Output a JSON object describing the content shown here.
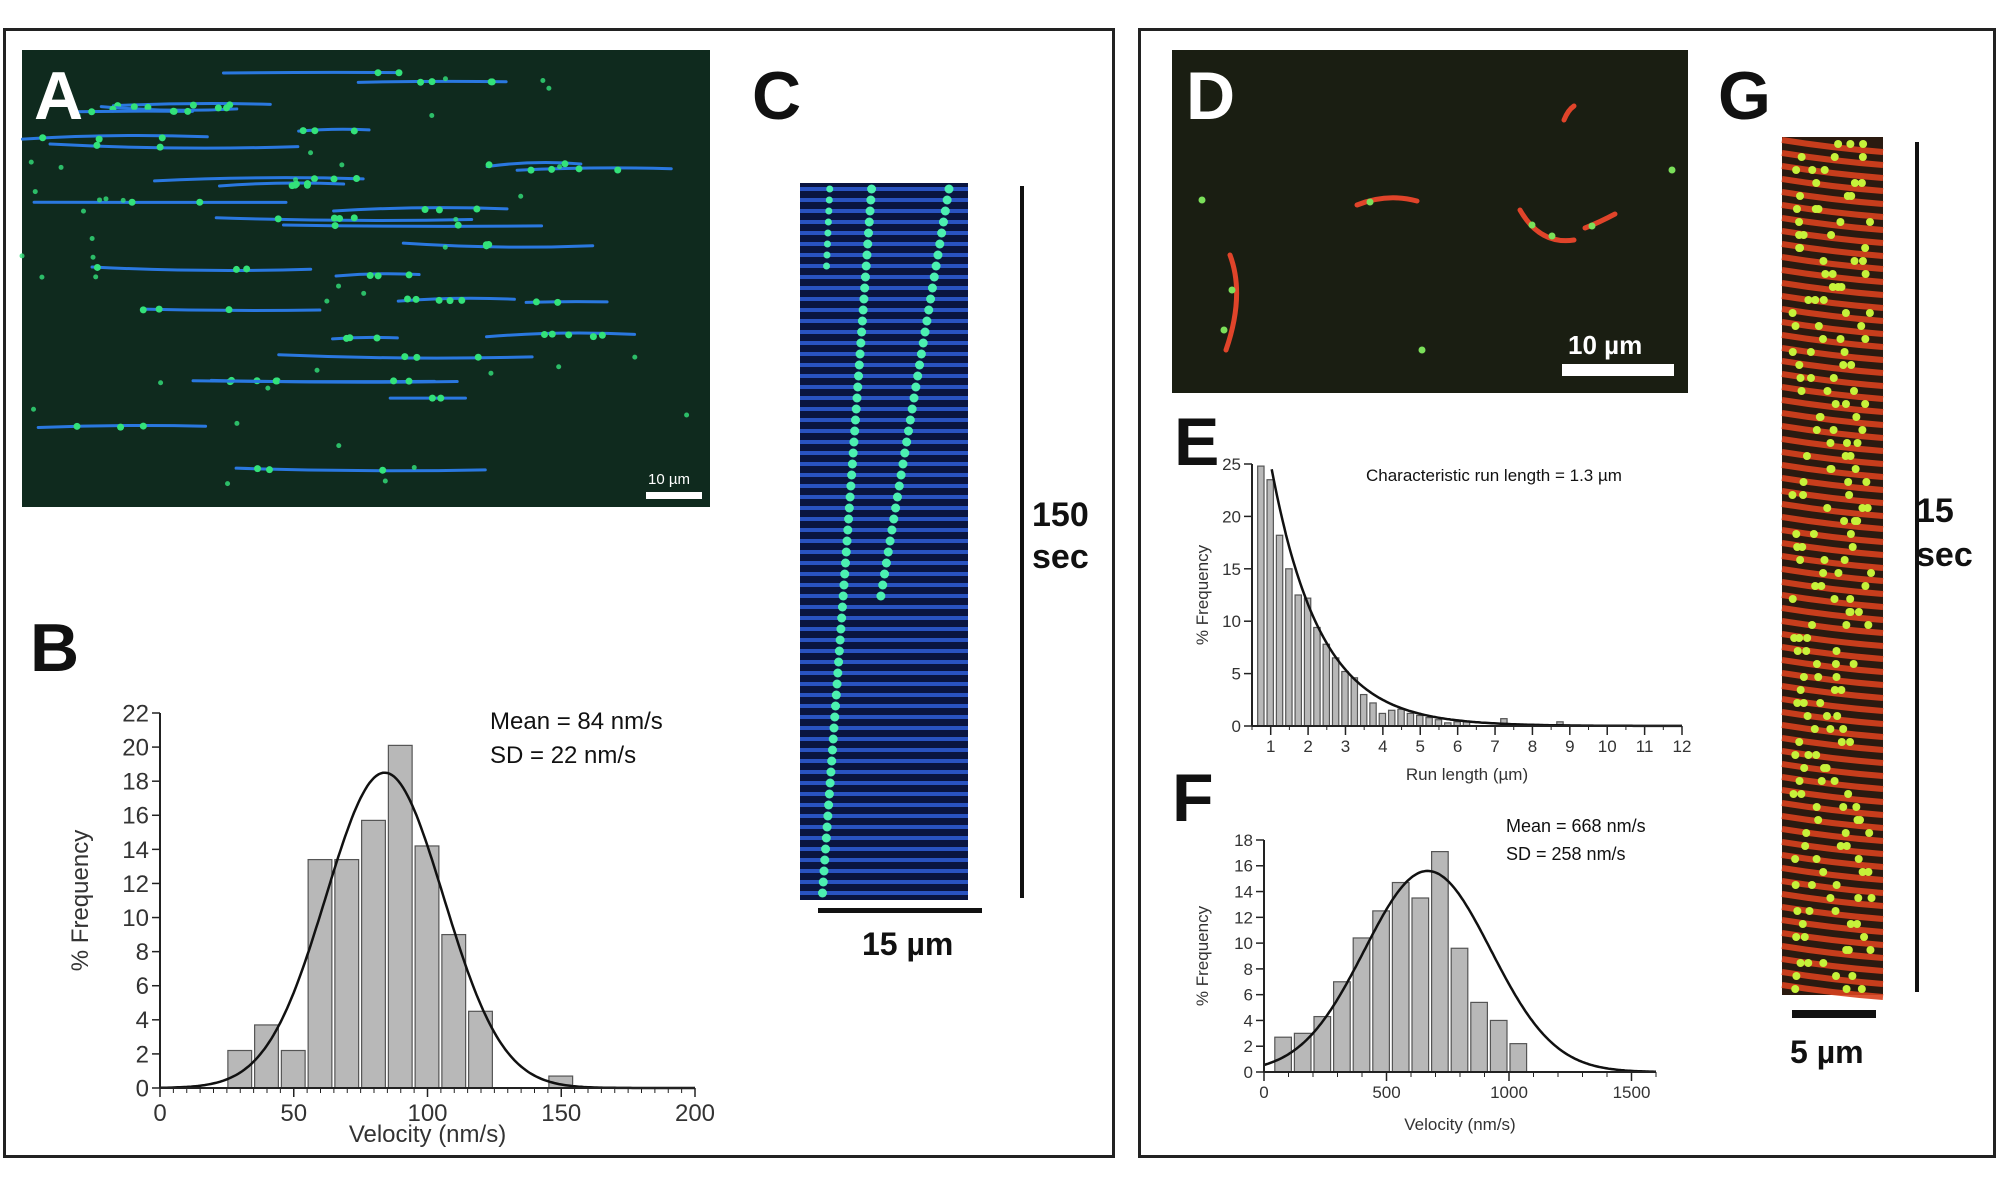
{
  "panels": {
    "A": {
      "label": "A",
      "scale": "10 µm"
    },
    "B": {
      "label": "B",
      "stat1": "Mean = 84 nm/s",
      "stat2": "SD = 22 nm/s"
    },
    "C": {
      "label": "C",
      "time": "150",
      "time_unit": "sec",
      "scale": "15 µm"
    },
    "D": {
      "label": "D",
      "scale": "10 µm"
    },
    "E": {
      "label": "E",
      "annotation": "Characteristic run length = 1.3 µm"
    },
    "F": {
      "label": "F",
      "stat1": "Mean = 668 nm/s",
      "stat2": "SD = 258 nm/s"
    },
    "G": {
      "label": "G",
      "time": "15",
      "time_unit": "sec",
      "scale": "5 µm"
    }
  },
  "chart_data": [
    {
      "id": "B",
      "type": "bar",
      "xlabel": "Velocity (nm/s)",
      "ylabel": "% Frequency",
      "xlim": [
        0,
        200
      ],
      "ylim": [
        0,
        22
      ],
      "xticks": [
        0,
        50,
        100,
        150,
        200
      ],
      "yticks": [
        0,
        2,
        4,
        6,
        8,
        10,
        12,
        14,
        16,
        18,
        20,
        22
      ],
      "bin_width": 10,
      "bars": [
        {
          "x": 30,
          "y": 2.2
        },
        {
          "x": 40,
          "y": 3.7
        },
        {
          "x": 50,
          "y": 2.2
        },
        {
          "x": 60,
          "y": 13.4
        },
        {
          "x": 70,
          "y": 13.4
        },
        {
          "x": 80,
          "y": 15.7
        },
        {
          "x": 90,
          "y": 20.1
        },
        {
          "x": 100,
          "y": 14.2
        },
        {
          "x": 110,
          "y": 9.0
        },
        {
          "x": 120,
          "y": 4.5
        },
        {
          "x": 150,
          "y": 0.7
        }
      ],
      "fit": {
        "model": "gaussian",
        "mean": 84,
        "sd": 22,
        "peak": 18.5
      }
    },
    {
      "id": "E",
      "type": "bar",
      "xlabel": "Run length (µm)",
      "ylabel": "% Frequency",
      "xlim": [
        0.5,
        12
      ],
      "ylim": [
        0,
        25
      ],
      "xticks": [
        1,
        2,
        3,
        4,
        5,
        6,
        7,
        8,
        9,
        10,
        11,
        12
      ],
      "yticks": [
        0,
        5,
        10,
        15,
        20,
        25
      ],
      "bin_width": 0.25,
      "bars": [
        {
          "x": 0.75,
          "y": 24.8
        },
        {
          "x": 1.0,
          "y": 23.5
        },
        {
          "x": 1.25,
          "y": 18.2
        },
        {
          "x": 1.5,
          "y": 15.0
        },
        {
          "x": 1.75,
          "y": 12.5
        },
        {
          "x": 2.0,
          "y": 12.2
        },
        {
          "x": 2.25,
          "y": 9.4
        },
        {
          "x": 2.5,
          "y": 7.8
        },
        {
          "x": 2.75,
          "y": 6.5
        },
        {
          "x": 3.0,
          "y": 5.2
        },
        {
          "x": 3.25,
          "y": 4.6
        },
        {
          "x": 3.5,
          "y": 3.0
        },
        {
          "x": 3.75,
          "y": 2.2
        },
        {
          "x": 4.0,
          "y": 1.2
        },
        {
          "x": 4.25,
          "y": 1.5
        },
        {
          "x": 4.5,
          "y": 1.6
        },
        {
          "x": 4.75,
          "y": 1.2
        },
        {
          "x": 5.0,
          "y": 1.0
        },
        {
          "x": 5.25,
          "y": 0.8
        },
        {
          "x": 5.5,
          "y": 0.6
        },
        {
          "x": 5.75,
          "y": 0.3
        },
        {
          "x": 6.0,
          "y": 0.4
        },
        {
          "x": 6.25,
          "y": 0.4
        },
        {
          "x": 7.25,
          "y": 0.7
        },
        {
          "x": 8.75,
          "y": 0.4
        }
      ],
      "fit": {
        "model": "exponential decay",
        "characteristic_length": 1.3,
        "amplitude": 54
      }
    },
    {
      "id": "F",
      "type": "bar",
      "xlabel": "Velocity (nm/s)",
      "ylabel": "% Frequency",
      "xlim": [
        0,
        1600
      ],
      "ylim": [
        0,
        18
      ],
      "xticks": [
        0,
        500,
        1000,
        1500
      ],
      "yticks": [
        0,
        2,
        4,
        6,
        8,
        10,
        12,
        14,
        16,
        18
      ],
      "bin_width": 80,
      "bars": [
        {
          "x": 80,
          "y": 2.7
        },
        {
          "x": 160,
          "y": 3.0
        },
        {
          "x": 240,
          "y": 4.3
        },
        {
          "x": 320,
          "y": 7.0
        },
        {
          "x": 400,
          "y": 10.4
        },
        {
          "x": 480,
          "y": 12.5
        },
        {
          "x": 560,
          "y": 14.7
        },
        {
          "x": 640,
          "y": 13.5
        },
        {
          "x": 720,
          "y": 17.1
        },
        {
          "x": 800,
          "y": 9.6
        },
        {
          "x": 880,
          "y": 5.4
        },
        {
          "x": 960,
          "y": 4.0
        },
        {
          "x": 1040,
          "y": 2.2
        }
      ],
      "fit": {
        "model": "gaussian",
        "mean": 668,
        "sd": 258,
        "peak": 15.6
      }
    }
  ],
  "colors": {
    "frame": "#222222",
    "bar_fill": "#b8b8b8",
    "bar_stroke": "#555555",
    "microtubule_blue": "#2a78e0",
    "motor_green": "#33e27a",
    "microtubule_red": "#e0442a",
    "micro_bg": "#10261c"
  }
}
